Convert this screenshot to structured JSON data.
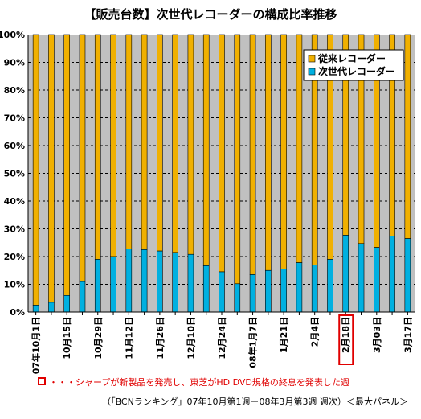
{
  "title": "【販売台数】次世代レコーダーの構成比率推移",
  "footnote": "・・・シャープが新製品を発売し、東芝がHD DVD規格の終息を発表した週",
  "source": "（「BCNランキング」07年10月第1週－08年3月第3週 週次）＜最大パネル＞",
  "colors": {
    "next_gen": "#00b0e0",
    "conventional": "#f0b000",
    "plot_bg": "#c0c0c0",
    "highlight": "#e00000"
  },
  "chart_data": {
    "type": "bar",
    "stacked": true,
    "percent": true,
    "ylim": [
      0,
      100
    ],
    "yticks": [
      "0%",
      "10%",
      "20%",
      "30%",
      "40%",
      "50%",
      "60%",
      "70%",
      "80%",
      "90%",
      "100%"
    ],
    "grid": "horizontal dashed",
    "legend_position": "top-right",
    "x_tick_labels": [
      "07年10月1日",
      "",
      "10月15日",
      "",
      "10月29日",
      "",
      "11月12日",
      "",
      "11月26日",
      "",
      "12月10日",
      "",
      "12月24日",
      "",
      "08年1月7日",
      "",
      "1月21日",
      "",
      "2月4日",
      "",
      "2月18日",
      "",
      "3月03日",
      "",
      "3月17日"
    ],
    "highlighted_label": "2月18日",
    "series": [
      {
        "name": "従来レコーダー",
        "color": "#f0b000",
        "values": [
          97.5,
          96.5,
          94,
          89,
          81,
          80,
          77.2,
          77.5,
          78,
          78.5,
          79.2,
          83.3,
          85.5,
          89.8,
          86.5,
          85,
          84.5,
          82.2,
          83,
          81,
          72.3,
          75.3,
          76.7,
          72.6,
          73.5
        ]
      },
      {
        "name": "次世代レコーダー",
        "color": "#00b0e0",
        "values": [
          2.5,
          3.5,
          6,
          11,
          19,
          20,
          22.8,
          22.5,
          22,
          21.5,
          20.8,
          16.7,
          14.5,
          10.2,
          13.5,
          15,
          15.5,
          17.8,
          17,
          19,
          27.7,
          24.7,
          23.3,
          27.4,
          26.5
        ]
      }
    ]
  }
}
